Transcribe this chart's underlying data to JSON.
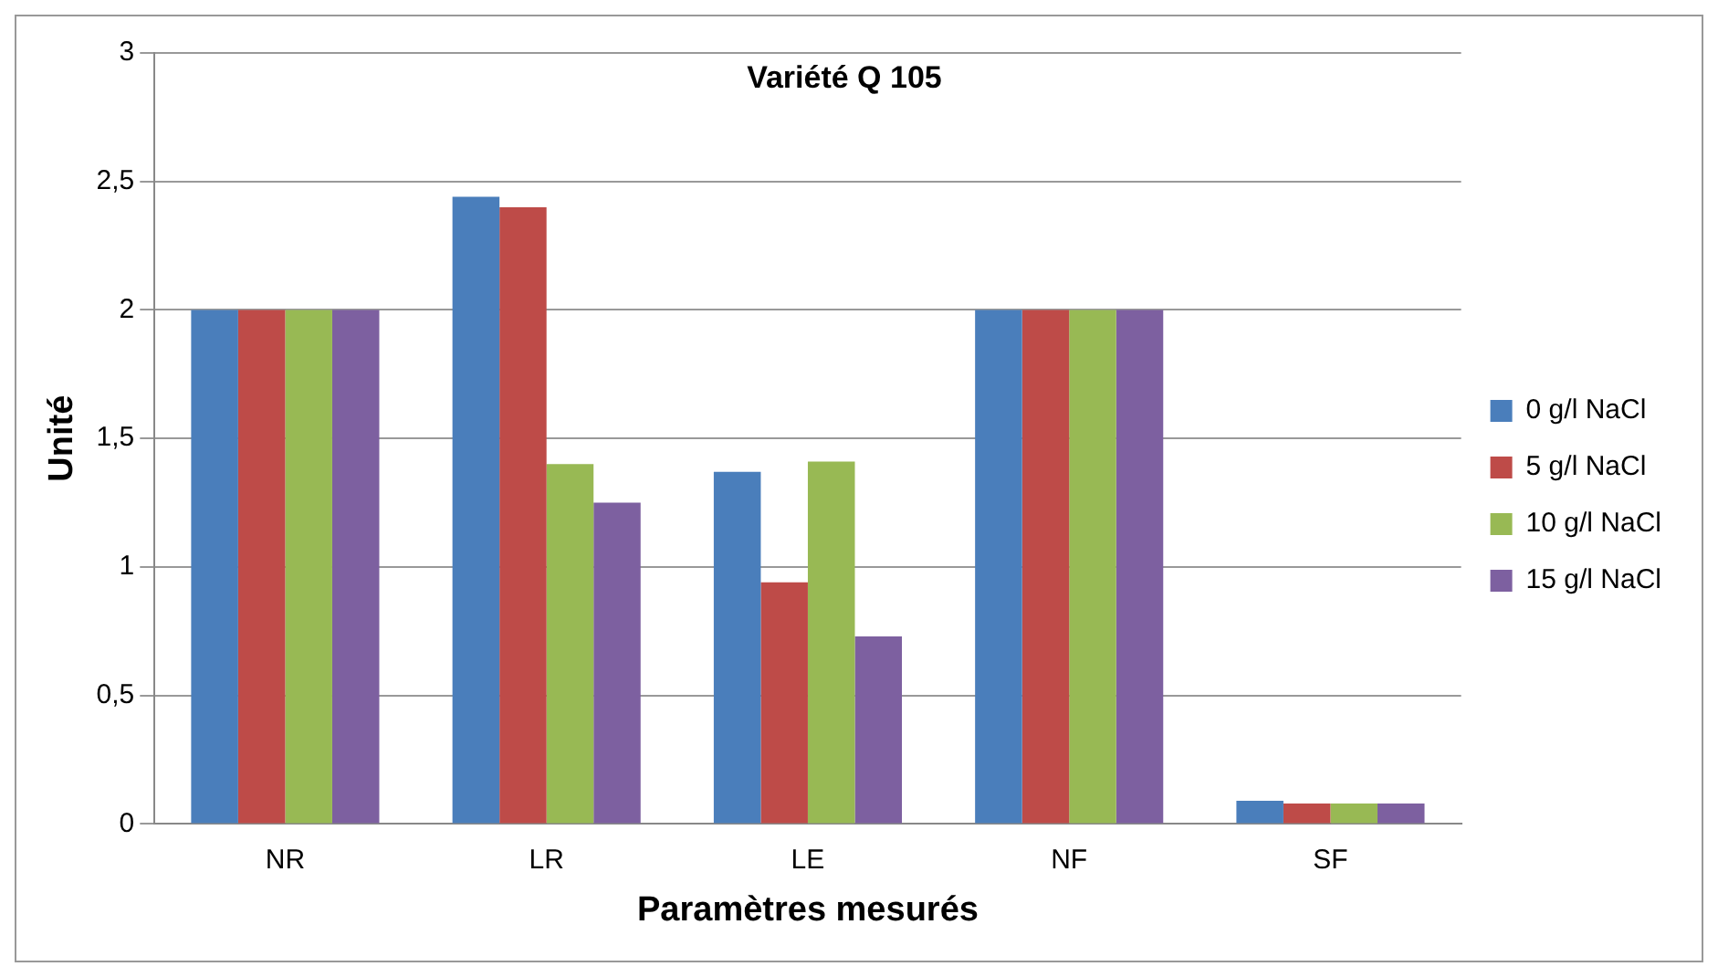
{
  "chart_data": {
    "type": "bar",
    "title": "Variété Q 105",
    "xlabel": "Paramètres mesurés",
    "ylabel": "Unité",
    "categories": [
      "NR",
      "LR",
      "LE",
      "NF",
      "SF"
    ],
    "series": [
      {
        "name": "0 g/l NaCl",
        "color": "#4a7ebb",
        "values": [
          2,
          2.44,
          1.37,
          2,
          0.09
        ]
      },
      {
        "name": "5 g/l NaCl",
        "color": "#be4b48",
        "values": [
          2,
          2.4,
          0.94,
          2,
          0.08
        ]
      },
      {
        "name": "10 g/l NaCl",
        "color": "#98b954",
        "values": [
          2,
          1.4,
          1.41,
          2,
          0.08
        ]
      },
      {
        "name": "15 g/l NaCl",
        "color": "#7d60a0",
        "values": [
          2,
          1.25,
          0.73,
          2,
          0.08
        ]
      }
    ],
    "ylim": [
      0,
      3
    ],
    "yticks": [
      {
        "value": 0,
        "label": "0"
      },
      {
        "value": 0.5,
        "label": "0,5"
      },
      {
        "value": 1,
        "label": "1"
      },
      {
        "value": 1.5,
        "label": "1,5"
      },
      {
        "value": 2,
        "label": "2"
      },
      {
        "value": 2.5,
        "label": "2,5"
      },
      {
        "value": 3,
        "label": "3"
      }
    ],
    "grid": "y",
    "legend": "right"
  }
}
